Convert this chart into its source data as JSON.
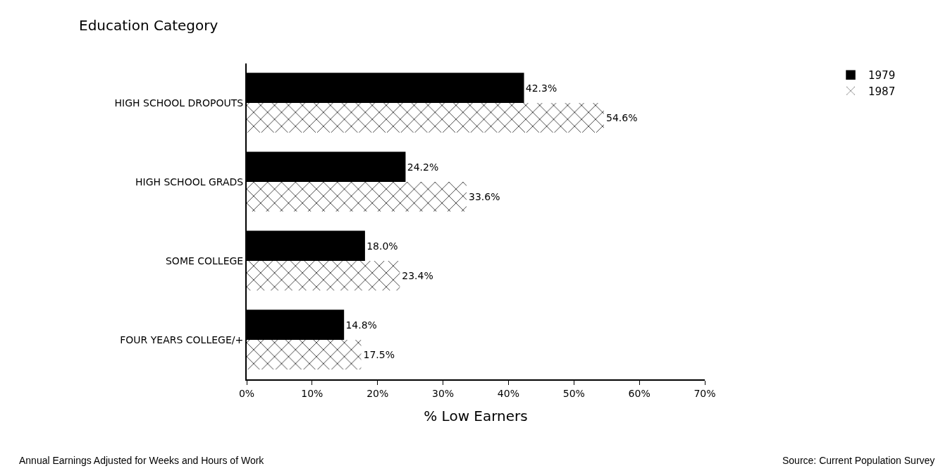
{
  "chart_data": {
    "type": "bar",
    "orientation": "horizontal",
    "ylabel": "Education Category",
    "xlabel": "% Low Earners",
    "categories": [
      "HIGH SCHOOL DROPOUTS",
      "HIGH SCHOOL GRADS",
      "SOME COLLEGE",
      "FOUR YEARS COLLEGE/+"
    ],
    "series": [
      {
        "name": "1979",
        "color": "#000000",
        "values": [
          42.3,
          24.2,
          18.0,
          14.8
        ],
        "value_labels": [
          "42.3%",
          "24.2%",
          "18.0%",
          "14.8%"
        ]
      },
      {
        "name": "1987",
        "color": "#ffffff",
        "values": [
          54.6,
          33.6,
          23.4,
          17.5
        ],
        "value_labels": [
          "54.6%",
          "33.6%",
          "23.4%",
          "17.5%"
        ]
      }
    ],
    "xlim": [
      0,
      70
    ],
    "xticks": [
      {
        "value": 0,
        "label": "0%"
      },
      {
        "value": 10,
        "label": "10%"
      },
      {
        "value": 20,
        "label": "20%"
      },
      {
        "value": 30,
        "label": "30%"
      },
      {
        "value": 40,
        "label": "40%"
      },
      {
        "value": 50,
        "label": "50%"
      },
      {
        "value": 60,
        "label": "60%"
      },
      {
        "value": 70,
        "label": "70%"
      }
    ],
    "grid": false,
    "legend": "top right",
    "annotations": [
      "Annual Earnings Adjusted for Weeks and Hours of Work",
      "Source: Current Population Survey"
    ]
  }
}
